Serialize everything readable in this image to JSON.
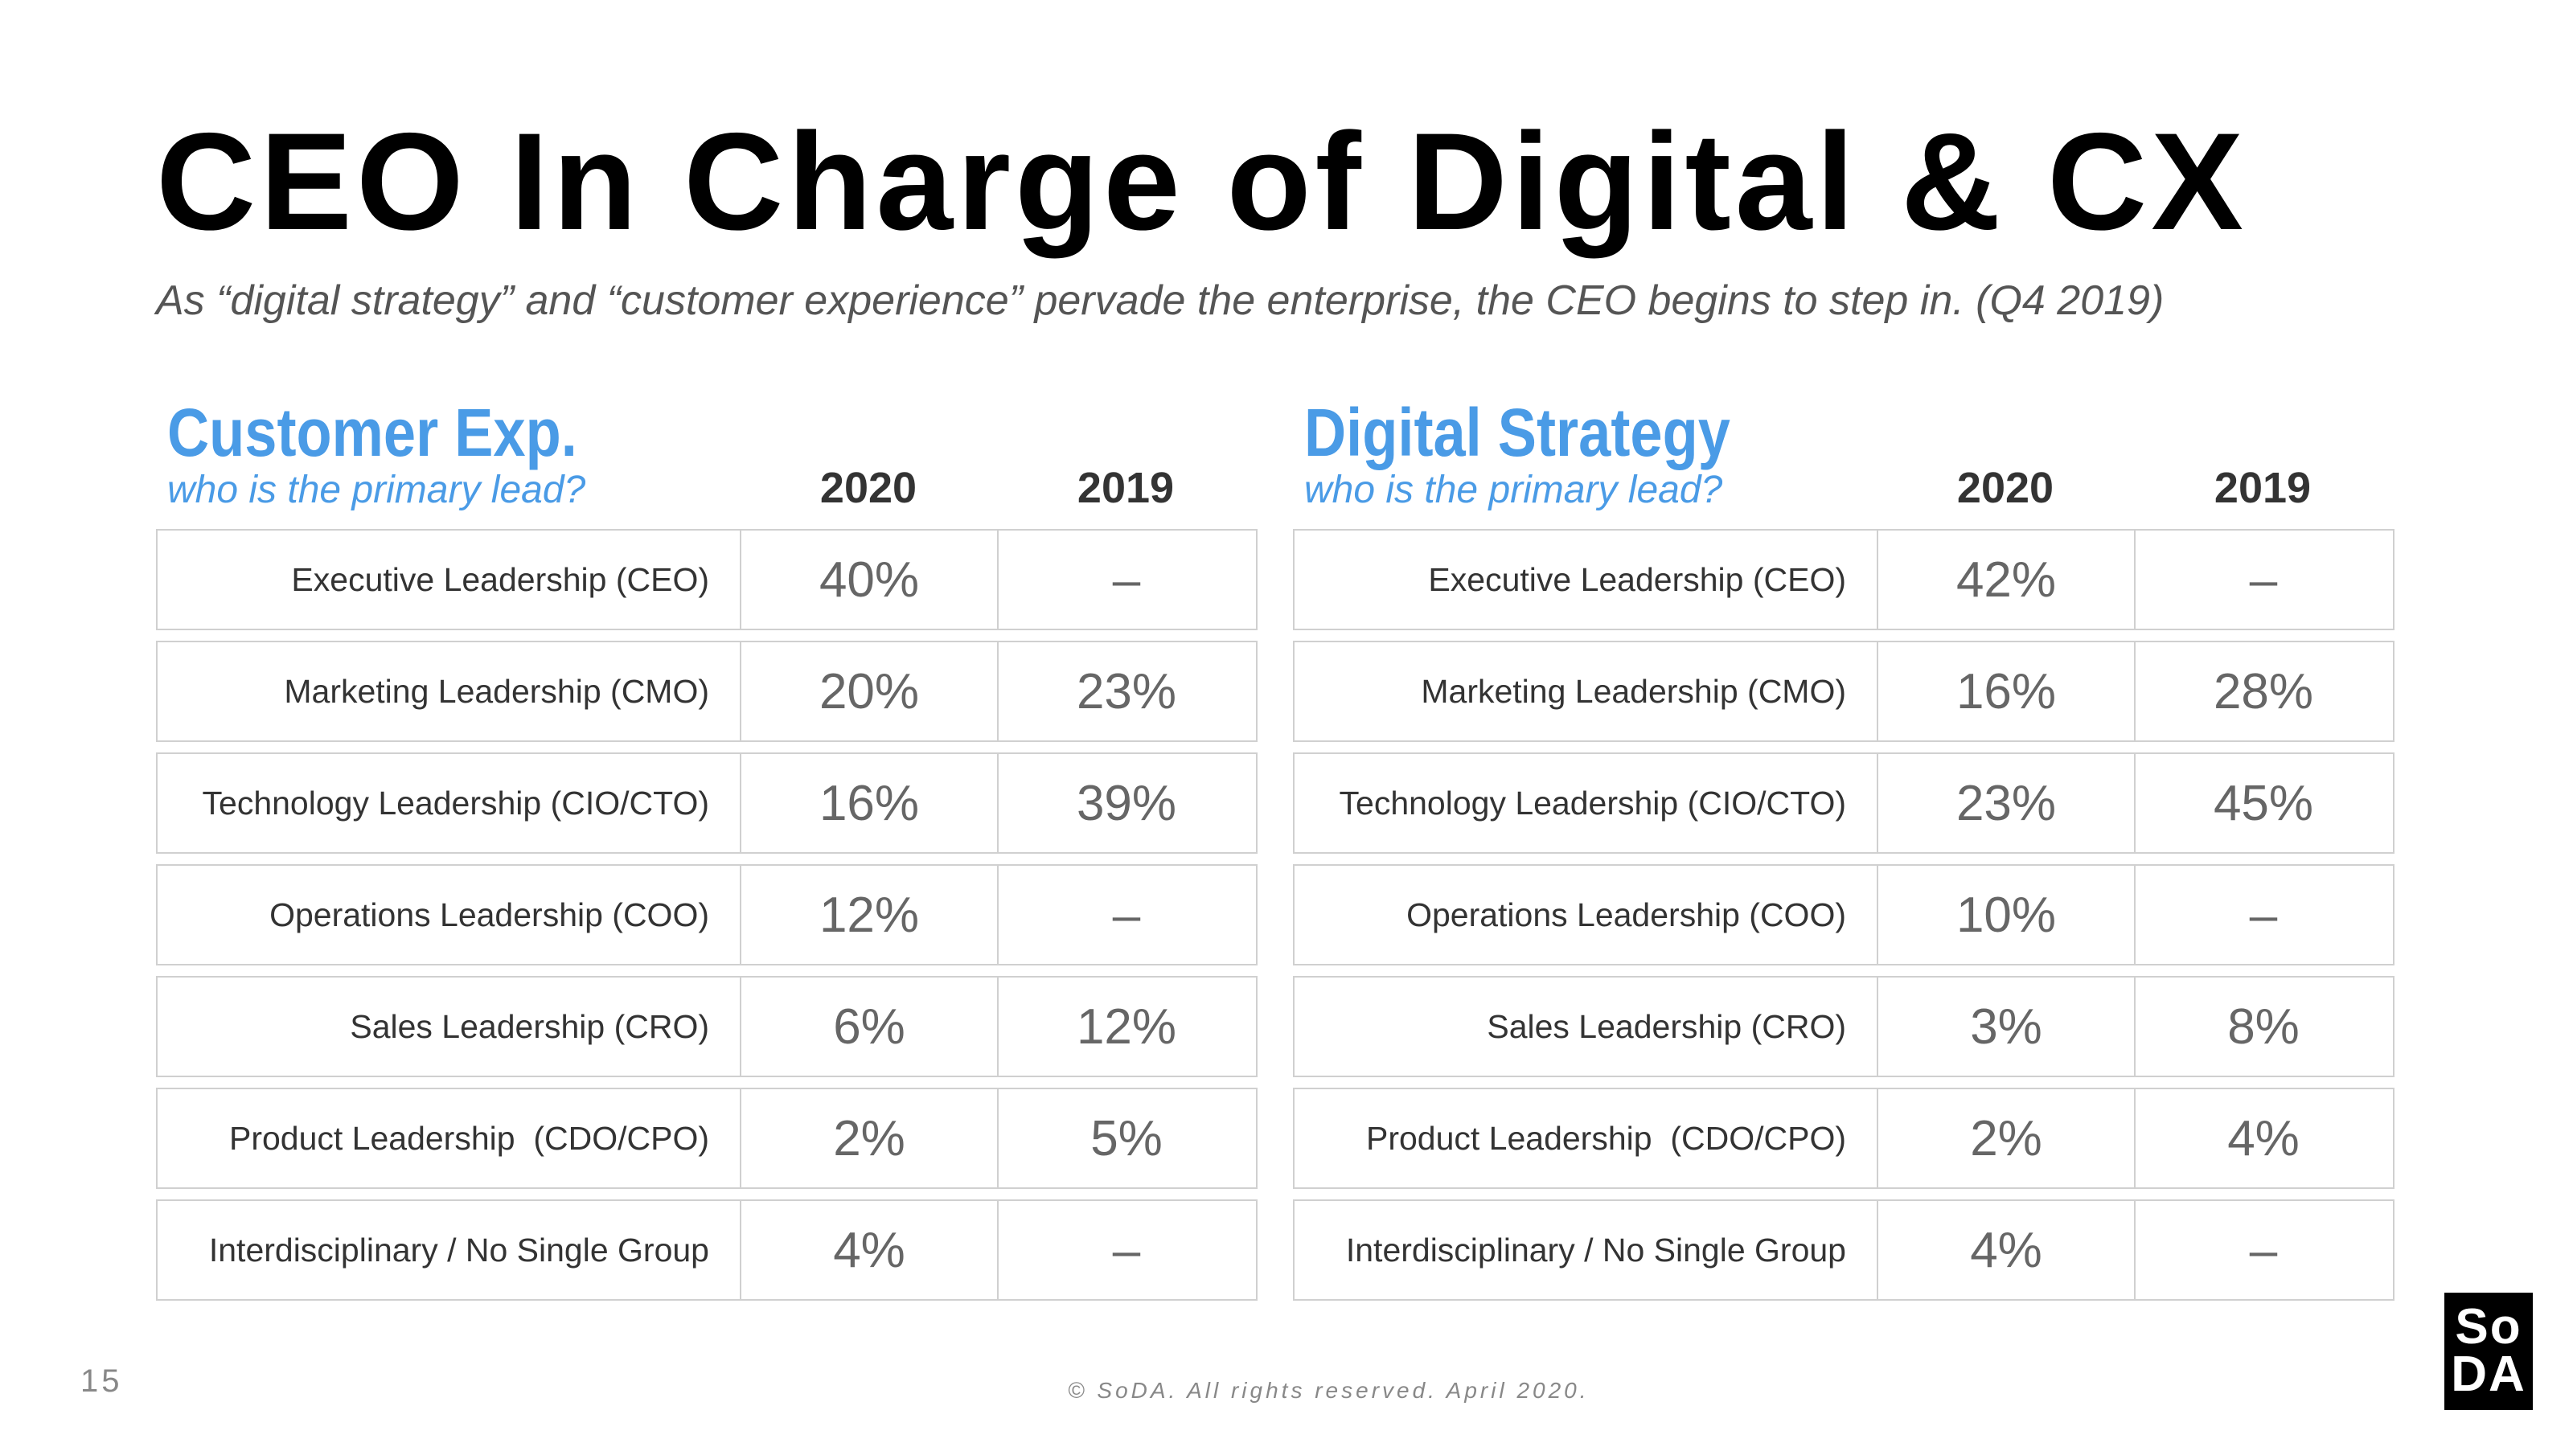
{
  "title": "CEO In Charge of Digital & CX",
  "subtitle": "As “digital strategy” and “customer experience” pervade the enterprise, the CEO begins to step in. (Q4 2019)",
  "panels": [
    {
      "title": "Customer Exp.",
      "subtitle": "who is the primary lead?",
      "col1": "2020",
      "col2": "2019",
      "rows": [
        {
          "label": "Executive Leadership (CEO)",
          "v2020": "40%",
          "v2019": "–"
        },
        {
          "label": "Marketing Leadership (CMO)",
          "v2020": "20%",
          "v2019": "23%"
        },
        {
          "label": "Technology Leadership (CIO/CTO)",
          "v2020": "16%",
          "v2019": "39%"
        },
        {
          "label": "Operations Leadership (COO)",
          "v2020": "12%",
          "v2019": "–"
        },
        {
          "label": "Sales Leadership (CRO)",
          "v2020": "6%",
          "v2019": "12%"
        },
        {
          "label": "Product Leadership  (CDO/CPO)",
          "v2020": "2%",
          "v2019": "5%"
        },
        {
          "label": "Interdisciplinary / No Single Group",
          "v2020": "4%",
          "v2019": "–"
        }
      ]
    },
    {
      "title": "Digital Strategy",
      "subtitle": "who is the primary lead?",
      "col1": "2020",
      "col2": "2019",
      "rows": [
        {
          "label": "Executive Leadership (CEO)",
          "v2020": "42%",
          "v2019": "–"
        },
        {
          "label": "Marketing Leadership (CMO)",
          "v2020": "16%",
          "v2019": "28%"
        },
        {
          "label": "Technology Leadership (CIO/CTO)",
          "v2020": "23%",
          "v2019": "45%"
        },
        {
          "label": "Operations Leadership (COO)",
          "v2020": "10%",
          "v2019": "–"
        },
        {
          "label": "Sales Leadership (CRO)",
          "v2020": "3%",
          "v2019": "8%"
        },
        {
          "label": "Product Leadership  (CDO/CPO)",
          "v2020": "2%",
          "v2019": "4%"
        },
        {
          "label": "Interdisciplinary / No Single Group",
          "v2020": "4%",
          "v2019": "–"
        }
      ]
    }
  ],
  "page_number": "15",
  "footer": "© SoDA. All rights reserved. April 2020.",
  "logo": {
    "line1": "So",
    "line2": "DA"
  }
}
